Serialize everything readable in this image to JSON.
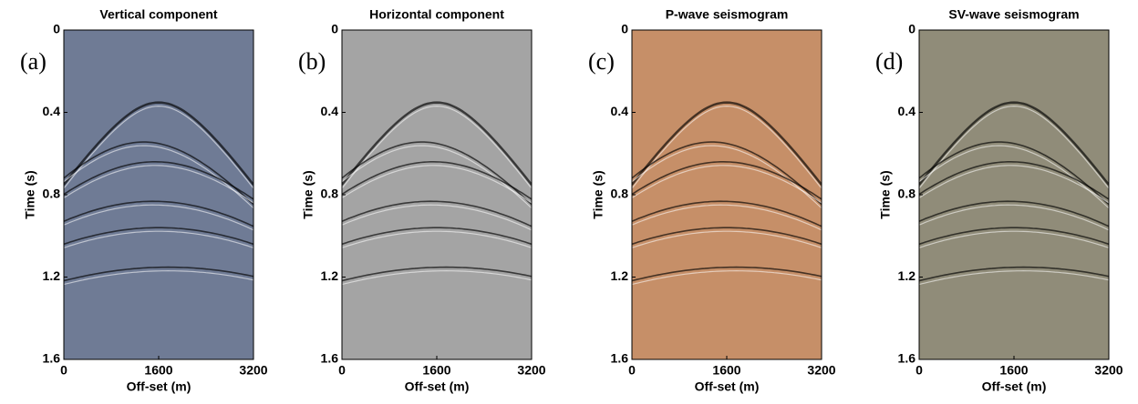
{
  "chart_data": [
    {
      "type": "image",
      "title": "Vertical component",
      "panel_label": "(a)",
      "xlabel": "Off-set (m)",
      "ylabel": "Time (s)",
      "color": "#6f7b95",
      "xlim": [
        0,
        3200
      ],
      "xticks": [
        0,
        1600,
        3200
      ],
      "ylim": [
        0,
        1.6
      ],
      "yticks": [
        0,
        0.4,
        0.8,
        1.2,
        1.6
      ],
      "y_inverted": true
    },
    {
      "type": "image",
      "title": "Horizontal component",
      "panel_label": "(b)",
      "xlabel": "Off-set (m)",
      "ylabel": "Time (s)",
      "color": "#a4a4a4",
      "xlim": [
        0,
        3200
      ],
      "xticks": [
        0,
        1600,
        3200
      ],
      "ylim": [
        0,
        1.6
      ],
      "yticks": [
        0,
        0.4,
        0.8,
        1.2,
        1.6
      ],
      "y_inverted": true
    },
    {
      "type": "image",
      "title": "P-wave seismogram",
      "panel_label": "(c)",
      "xlabel": "Off-set (m)",
      "ylabel": "Time (s)",
      "color": "#c68f68",
      "xlim": [
        0,
        3200
      ],
      "xticks": [
        0,
        1600,
        3200
      ],
      "ylim": [
        0,
        1.6
      ],
      "yticks": [
        0,
        0.4,
        0.8,
        1.2,
        1.6
      ],
      "y_inverted": true
    },
    {
      "type": "image",
      "title": "SV-wave seismogram",
      "panel_label": "(d)",
      "xlabel": "Off-set (m)",
      "ylabel": "Time (s)",
      "color": "#908c79",
      "xlim": [
        0,
        3200
      ],
      "xticks": [
        0,
        1600,
        3200
      ],
      "ylim": [
        0,
        1.6
      ],
      "yticks": [
        0,
        0.4,
        0.8,
        1.2,
        1.6
      ],
      "y_inverted": true
    }
  ]
}
